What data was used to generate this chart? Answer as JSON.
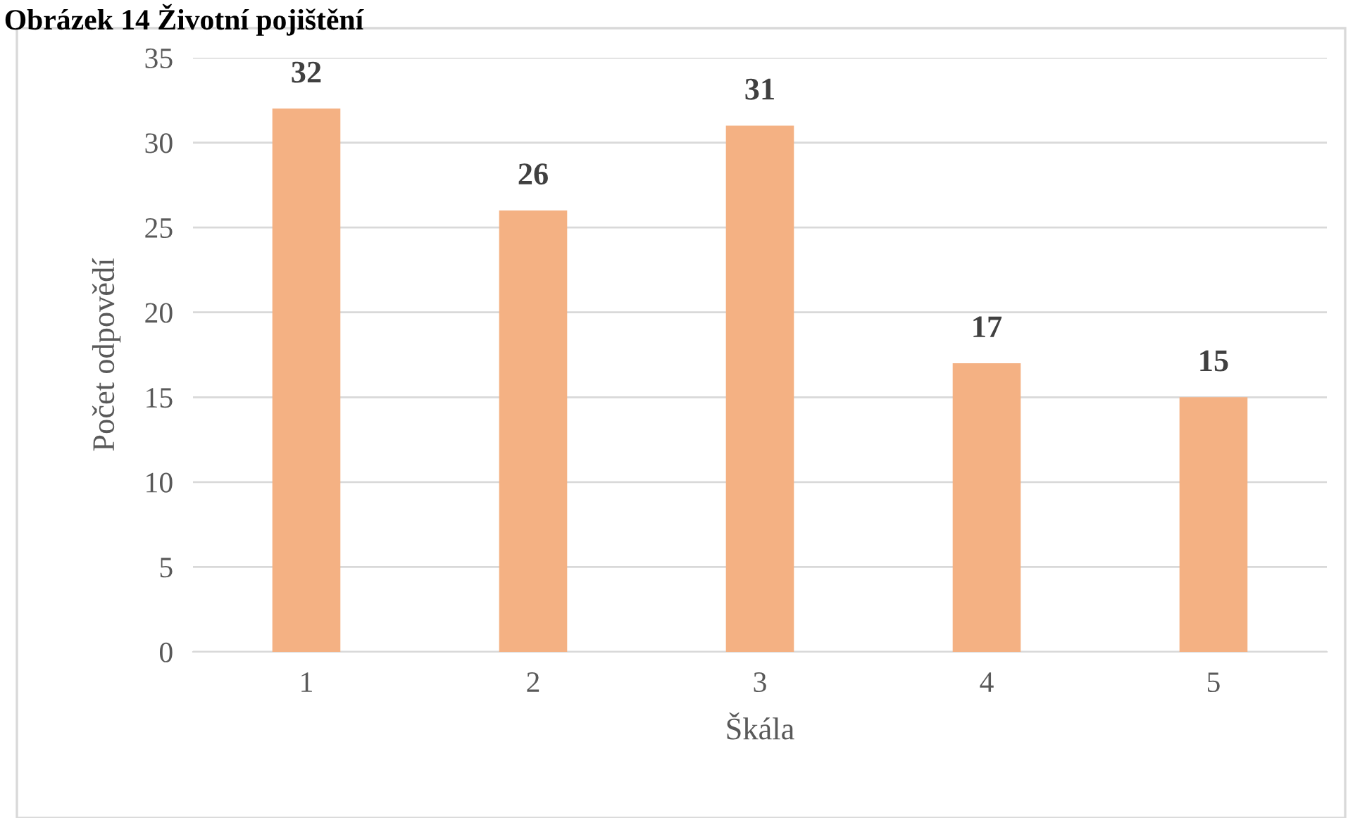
{
  "chart_data": {
    "type": "bar",
    "title": "Obrázek 14 Životní pojištění",
    "xlabel": "Škála",
    "ylabel": "Počet odpovědí",
    "categories": [
      "1",
      "2",
      "3",
      "4",
      "5"
    ],
    "values": [
      32,
      26,
      31,
      17,
      15
    ],
    "color": "#f4b183",
    "ylim": [
      0,
      35
    ],
    "yticks": [
      0,
      5,
      10,
      15,
      20,
      25,
      30,
      35
    ],
    "grid": "y",
    "data_labels": true
  }
}
